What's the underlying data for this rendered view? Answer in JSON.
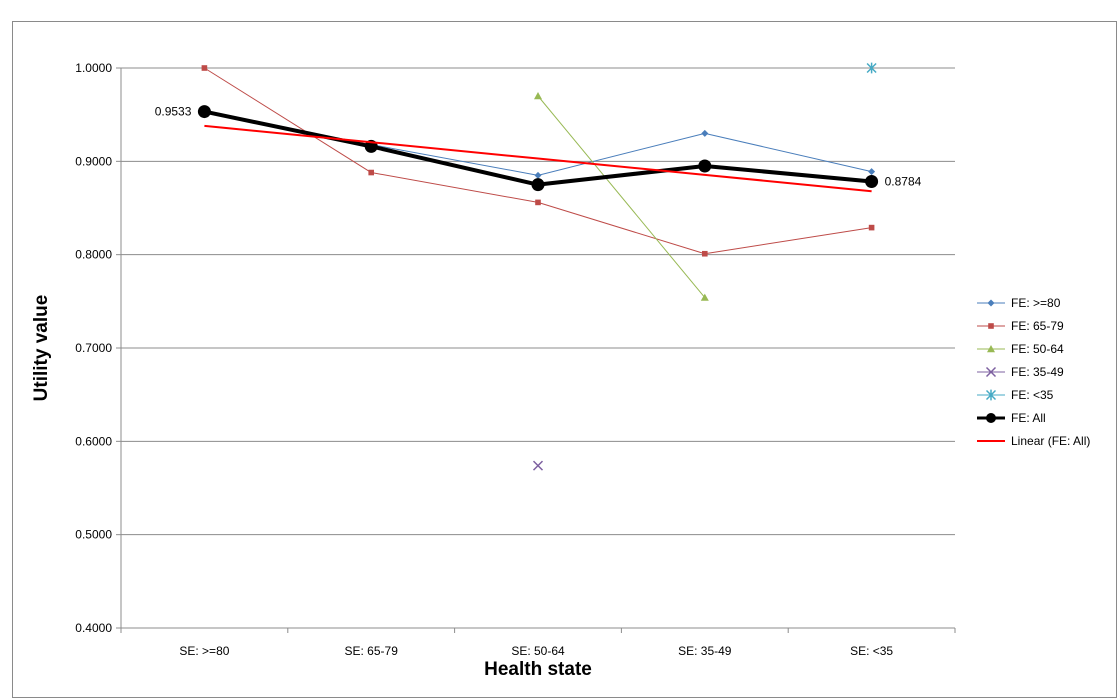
{
  "chart_data": {
    "type": "line",
    "title": "",
    "xlabel": "Health state",
    "ylabel": "Utility value",
    "categories": [
      "SE: >=80",
      "SE: 65-79",
      "SE: 50-64",
      "SE: 35-49",
      "SE: <35"
    ],
    "ylim": [
      0.4,
      1.0
    ],
    "yticks": [
      "0.4000",
      "0.5000",
      "0.6000",
      "0.7000",
      "0.8000",
      "0.9000",
      "1.0000"
    ],
    "grid": "horizontal",
    "legend_position": "right",
    "series": [
      {
        "name": "FE: >=80",
        "color": "#4a7ebb",
        "marker": "diamond",
        "width": 1,
        "values": [
          null,
          0.918,
          0.885,
          0.93,
          0.889
        ]
      },
      {
        "name": "FE: 65-79",
        "color": "#be4b48",
        "marker": "square",
        "width": 1,
        "values": [
          1.0,
          0.888,
          0.856,
          0.801,
          0.829
        ]
      },
      {
        "name": "FE: 50-64",
        "color": "#98b954",
        "marker": "triangle",
        "width": 1,
        "values": [
          null,
          null,
          0.97,
          0.754,
          null
        ]
      },
      {
        "name": "FE: 35-49",
        "color": "#7d60a0",
        "marker": "x",
        "width": 1,
        "values": [
          null,
          null,
          0.574,
          null,
          null
        ]
      },
      {
        "name": "FE: <35",
        "color": "#46aac5",
        "marker": "star",
        "width": 1,
        "values": [
          null,
          null,
          null,
          null,
          1.0
        ]
      },
      {
        "name": "FE: All",
        "color": "#000000",
        "marker": "circle",
        "width": 4,
        "values": [
          0.9533,
          0.916,
          0.875,
          0.895,
          0.8784
        ]
      },
      {
        "name": "Linear (FE: All)",
        "color": "#ff0000",
        "marker": "none",
        "width": 2,
        "values": [
          0.938,
          0.9205,
          0.903,
          0.8855,
          0.868
        ]
      }
    ],
    "data_labels": [
      {
        "series": "FE: All",
        "index": 0,
        "text": "0.9533",
        "side": "left"
      },
      {
        "series": "FE: All",
        "index": 4,
        "text": "0.8784",
        "side": "right"
      }
    ]
  }
}
